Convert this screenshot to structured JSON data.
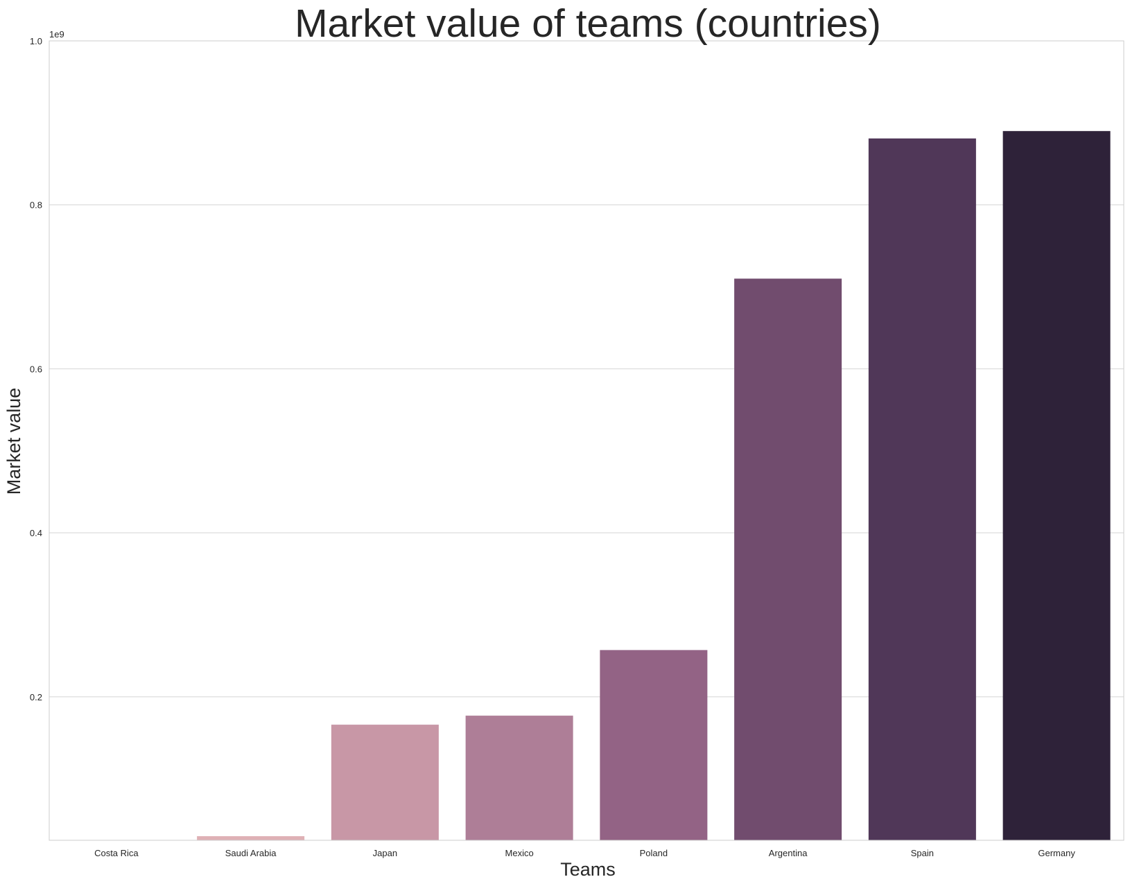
{
  "chart_data": {
    "type": "bar",
    "title": "Market value of teams (countries)",
    "xlabel": "Teams",
    "ylabel": "Market value",
    "offset_label": "1e9",
    "categories": [
      "Costa Rica",
      "Saudi Arabia",
      "Japan",
      "Mexico",
      "Poland",
      "Argentina",
      "Spain",
      "Germany"
    ],
    "values": [
      25000000,
      30000000,
      166000000,
      177000000,
      257000000,
      710000000,
      881000000,
      890000000
    ],
    "colors": [
      "#e9c6c6",
      "#dfb1b5",
      "#c897a6",
      "#ae7e97",
      "#936385",
      "#714c6e",
      "#503758",
      "#2e2239"
    ],
    "ylim": [
      25000000,
      1000000000
    ],
    "yticks": [
      200000000,
      400000000,
      600000000,
      800000000,
      1000000000
    ],
    "ytick_labels": [
      "0.2",
      "0.4",
      "0.6",
      "0.8",
      "1.0"
    ],
    "grid": "y",
    "gridline_color": "#d4d4d4",
    "spine_color": "#cccccc"
  }
}
